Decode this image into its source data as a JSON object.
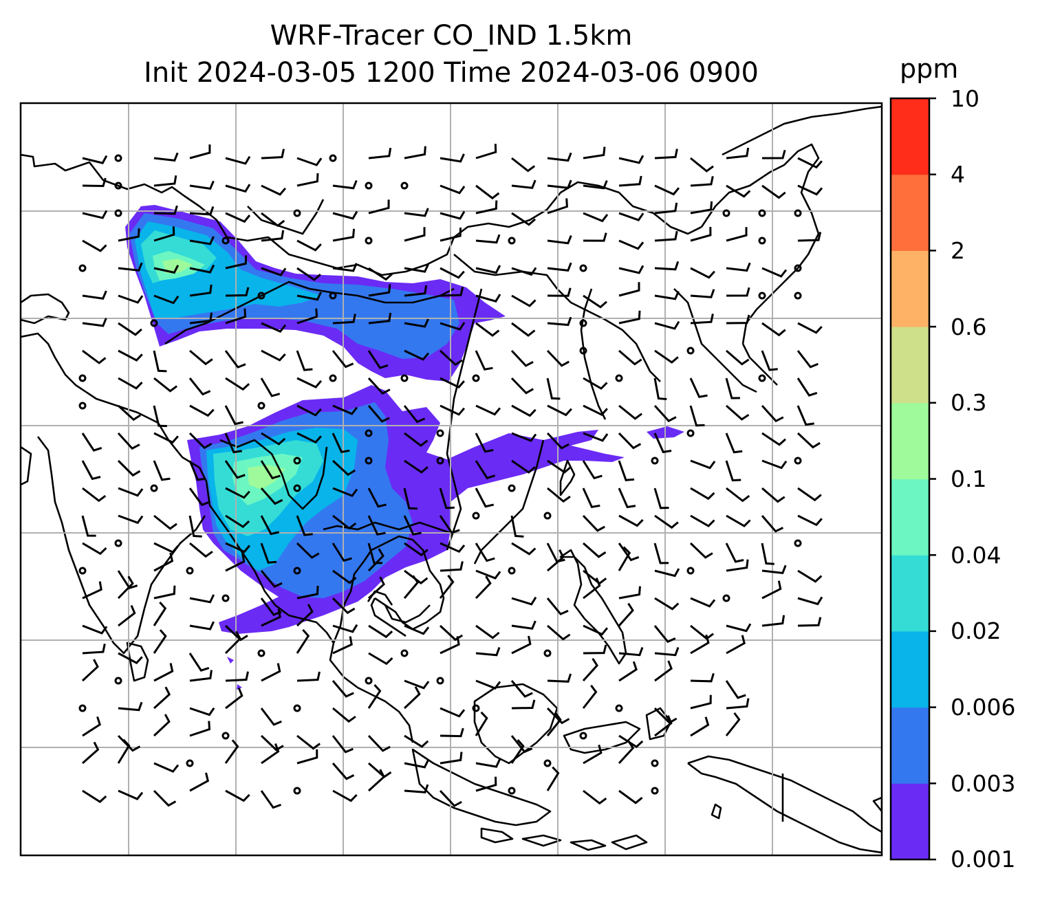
{
  "title": {
    "line1": "WRF-Tracer CO_IND 1.5km",
    "line2": "Init 2024-03-05 1200 Time 2024-03-06 0900"
  },
  "colorbar": {
    "unit": "ppm",
    "levels": [
      "0.001",
      "0.003",
      "0.006",
      "0.02",
      "0.04",
      "0.1",
      "0.3",
      "0.6",
      "2",
      "4",
      "10"
    ],
    "colors": [
      "#6a2bf5",
      "#3478f0",
      "#08b4ea",
      "#35dcd6",
      "#6cf7c2",
      "#9efa9a",
      "#cfe08a",
      "#fdb266",
      "#ff6f3c",
      "#ff2d1a"
    ]
  },
  "map": {
    "background": "#ffffff",
    "coastline_color": "#000000",
    "grid_color": "#b0b0b0"
  }
}
